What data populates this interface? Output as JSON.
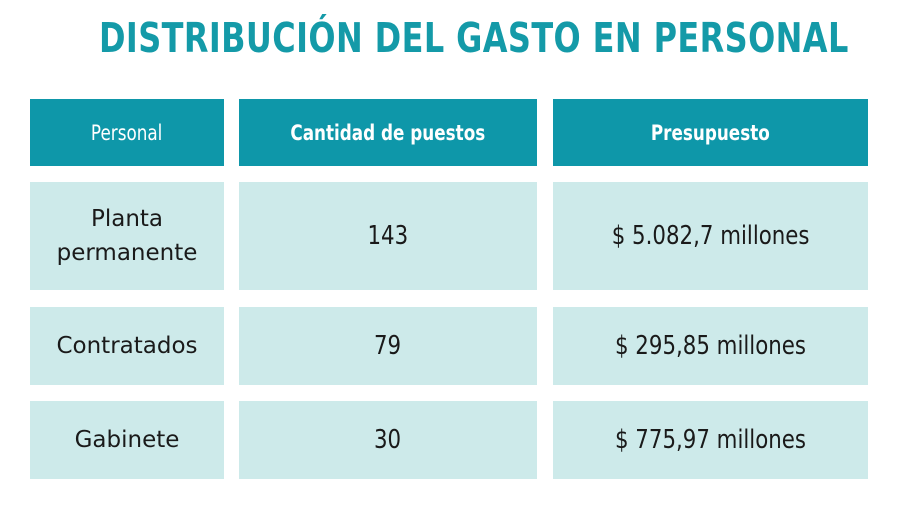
{
  "title": "DISTRIBUCIÓN DEL GASTO EN PERSONAL",
  "table": {
    "headers": [
      "Personal",
      "Cantidad de puestos",
      "Presupuesto"
    ],
    "rows": [
      {
        "personal": "Planta permanente",
        "cantidad": "143",
        "presupuesto": "$ 5.082,7 millones"
      },
      {
        "personal": "Contratados",
        "cantidad": "79",
        "presupuesto": "$ 295,85 millones"
      },
      {
        "personal": "Gabinete",
        "cantidad": "30",
        "presupuesto": "$ 775,97 millones"
      }
    ]
  },
  "colors": {
    "title": "#149aa8",
    "header_bg": "#0e97a9",
    "cell_bg": "#cdeaea"
  }
}
